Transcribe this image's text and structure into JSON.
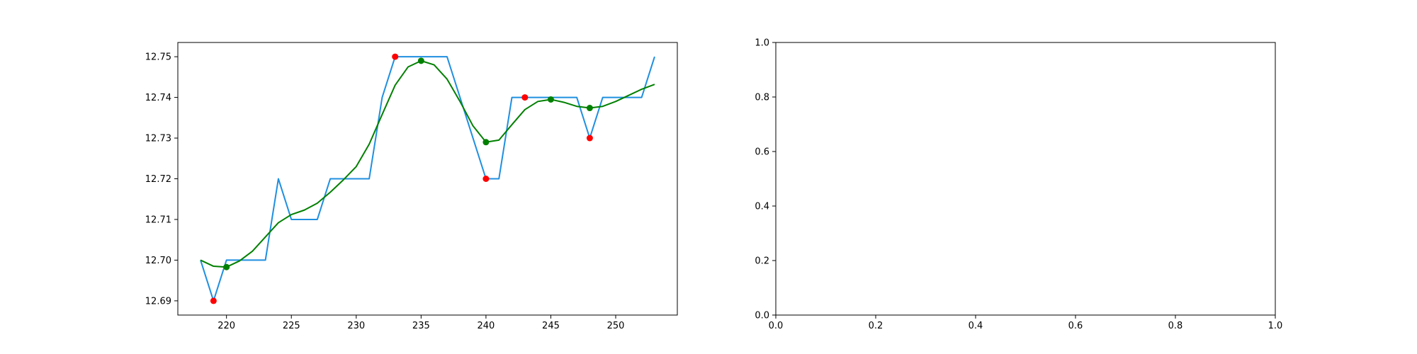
{
  "colors": {
    "price_line": "#1f8fe0",
    "smooth_line": "#008000",
    "extrema_marker": "#ff0000",
    "smooth_marker": "#008000",
    "axes": "#000000",
    "background": "#ffffff"
  },
  "chart_data": [
    {
      "type": "line",
      "xlim": [
        216.25,
        254.75
      ],
      "ylim": [
        12.6865,
        12.7535
      ],
      "x_ticks": [
        "220",
        "225",
        "230",
        "235",
        "240",
        "245",
        "250"
      ],
      "y_ticks": [
        "12.69",
        "12.70",
        "12.71",
        "12.72",
        "12.73",
        "12.74",
        "12.75"
      ],
      "grid": false,
      "series": [
        {
          "style": "line",
          "color": "#1f8fe0",
          "x": [
            218,
            219,
            220,
            221,
            222,
            223,
            224,
            225,
            226,
            227,
            228,
            229,
            230,
            231,
            232,
            233,
            234,
            235,
            236,
            237,
            238,
            239,
            240,
            241,
            242,
            243,
            244,
            245,
            246,
            247,
            248,
            249,
            250,
            251,
            252,
            253
          ],
          "y": [
            12.7,
            12.69,
            12.7,
            12.7,
            12.7,
            12.7,
            12.72,
            12.71,
            12.71,
            12.71,
            12.72,
            12.72,
            12.72,
            12.72,
            12.74,
            12.75,
            12.75,
            12.75,
            12.75,
            12.75,
            12.74,
            12.73,
            12.72,
            12.72,
            12.74,
            12.74,
            12.74,
            12.74,
            12.74,
            12.74,
            12.73,
            12.74,
            12.74,
            12.74,
            12.74,
            12.75
          ]
        },
        {
          "style": "line",
          "color": "#008000",
          "x": [
            218,
            219,
            220,
            221,
            222,
            223,
            224,
            225,
            226,
            227,
            228,
            229,
            230,
            231,
            232,
            233,
            234,
            235,
            236,
            237,
            238,
            239,
            240,
            241,
            242,
            243,
            244,
            245,
            246,
            247,
            248,
            249,
            250,
            251,
            252,
            253
          ],
          "y": [
            12.7,
            12.6985,
            12.6983,
            12.6998,
            12.7022,
            12.7057,
            12.7092,
            12.7112,
            12.7123,
            12.714,
            12.7167,
            12.7197,
            12.723,
            12.7285,
            12.7358,
            12.743,
            12.7475,
            12.749,
            12.748,
            12.7445,
            12.739,
            12.733,
            12.729,
            12.7295,
            12.7333,
            12.737,
            12.739,
            12.7395,
            12.7388,
            12.7378,
            12.7374,
            12.7378,
            12.739,
            12.7405,
            12.742,
            12.7432
          ]
        },
        {
          "style": "scatter",
          "color": "#ff0000",
          "x": [
            219,
            233,
            240,
            243,
            248
          ],
          "y": [
            12.69,
            12.75,
            12.72,
            12.74,
            12.73
          ]
        },
        {
          "style": "scatter",
          "color": "#008000",
          "x": [
            220,
            235,
            240,
            245,
            248
          ],
          "y": [
            12.6983,
            12.749,
            12.729,
            12.7395,
            12.7374
          ]
        }
      ]
    },
    {
      "type": "line",
      "xlim": [
        0,
        1
      ],
      "ylim": [
        0,
        1
      ],
      "x_ticks": [
        "0.0",
        "0.2",
        "0.4",
        "0.6",
        "0.8",
        "1.0"
      ],
      "y_ticks": [
        "0.0",
        "0.2",
        "0.4",
        "0.6",
        "0.8",
        "1.0"
      ],
      "grid": false,
      "series": []
    }
  ]
}
